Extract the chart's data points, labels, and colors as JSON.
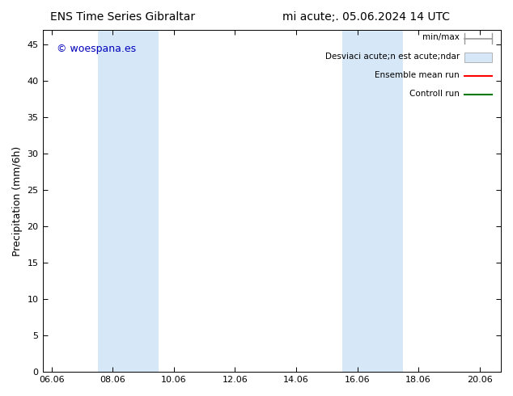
{
  "title1": "ENS Time Series Gibraltar",
  "title2": "mi acute;. 05.06.2024 14 UTC",
  "ylabel": "Precipitation (mm/6h)",
  "watermark": "© woespana.es",
  "ylim": [
    0,
    47
  ],
  "yticks": [
    0,
    5,
    10,
    15,
    20,
    25,
    30,
    35,
    40,
    45
  ],
  "xtick_labels": [
    "06.06",
    "08.06",
    "10.06",
    "12.06",
    "14.06",
    "16.06",
    "18.06",
    "20.06"
  ],
  "xtick_positions": [
    0,
    2,
    4,
    6,
    8,
    10,
    12,
    14
  ],
  "xlim": [
    -0.3,
    14.7
  ],
  "shaded_regions": [
    {
      "x_start": 1.5,
      "x_end": 3.5
    },
    {
      "x_start": 9.5,
      "x_end": 11.5
    }
  ],
  "shade_color": "#d6e8f7",
  "background_color": "#ffffff",
  "plot_bg_color": "#ffffff",
  "minmax_color": "#999999",
  "std_color": "#d6e8f7",
  "std_edge_color": "#999999",
  "ensemble_mean_color": "#ff0000",
  "control_run_color": "#007700",
  "watermark_color": "#0000bb",
  "legend_text_color": "#000000",
  "title_fontsize": 10,
  "ylabel_fontsize": 9,
  "tick_fontsize": 8,
  "legend_fontsize": 7.5,
  "watermark_fontsize": 9
}
